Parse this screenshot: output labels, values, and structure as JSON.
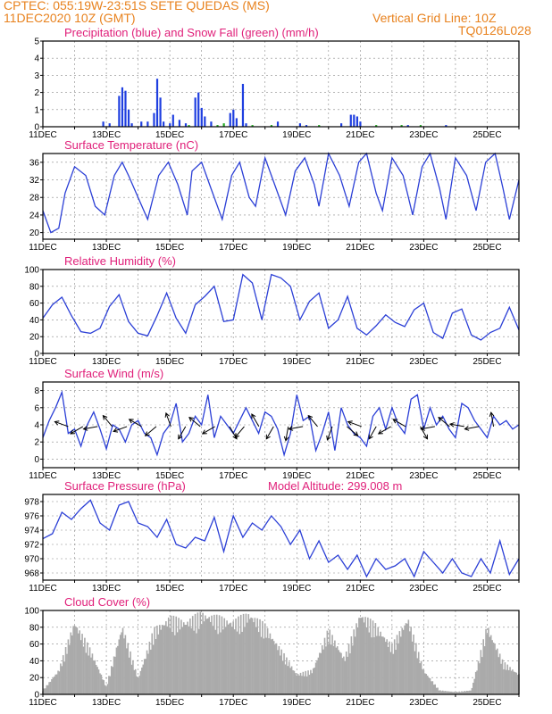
{
  "header": {
    "line1": "CPTEC:  055:19W-23:51S  SETE QUEDAS (MS)",
    "line2_left": "11DEC2020 10Z (GMT)",
    "line2_right": "Vertical Grid Line: 10Z",
    "line3_right": "TQ0126L028"
  },
  "colors": {
    "header": "#e8821e",
    "title": "#e0207a",
    "line": "#2b3fd6",
    "snow": "#22aa22",
    "cloud": "#aaaaaa",
    "arrow": "#000000"
  },
  "x_dates": [
    "11DEC",
    "13DEC",
    "15DEC",
    "17DEC",
    "19DEC",
    "21DEC",
    "23DEC",
    "25DEC"
  ],
  "chart_data": [
    {
      "id": "precip",
      "type": "bar",
      "title": "Precipitation (blue) and Snow Fall (green) (mm/h)",
      "ylim": [
        0,
        5
      ],
      "yticks": [
        0,
        1,
        2,
        3,
        4,
        5
      ],
      "xlim": [
        0,
        15
      ],
      "series": [
        {
          "name": "Precipitation",
          "color": "#1f3fe0",
          "x": [
            1.9,
            2.1,
            2.4,
            2.5,
            2.6,
            2.7,
            2.8,
            3.1,
            3.3,
            3.5,
            3.6,
            3.7,
            3.8,
            4.0,
            4.1,
            4.3,
            4.5,
            4.8,
            4.9,
            5.0,
            5.1,
            5.3,
            5.9,
            6.0,
            6.1,
            6.3,
            6.4,
            7.4,
            8.1,
            8.3,
            9.4,
            9.7,
            9.8,
            9.9,
            10.0,
            11.5,
            12.7
          ],
          "values": [
            0.3,
            0.2,
            1.8,
            2.3,
            2.1,
            1.0,
            0.2,
            0.3,
            0.3,
            0.8,
            2.8,
            1.7,
            0.3,
            0.2,
            0.7,
            0.4,
            0.2,
            1.7,
            2.0,
            1.1,
            0.6,
            0.3,
            0.8,
            1.0,
            0.5,
            2.5,
            0.2,
            0.3,
            0.2,
            0.1,
            0.2,
            0.7,
            0.7,
            0.6,
            0.3,
            0.1,
            0.1
          ]
        },
        {
          "name": "Snow Fall",
          "color": "#22aa22",
          "x": [
            4.6,
            5.5,
            5.7,
            6.6,
            7.2,
            8.7,
            10.5,
            11.3,
            11.9
          ],
          "values": [
            0.1,
            0.1,
            0.2,
            0.1,
            0.1,
            0.1,
            0.1,
            0.1,
            0.1
          ]
        }
      ]
    },
    {
      "id": "temp",
      "type": "line",
      "title": "Surface Temperature (nC)",
      "ylim": [
        18.5,
        38
      ],
      "yticks": [
        20,
        24,
        28,
        32,
        36
      ],
      "xlim": [
        0,
        15
      ],
      "series": [
        {
          "name": "Temperature",
          "x": [
            0,
            0.25,
            0.5,
            0.7,
            1.0,
            1.35,
            1.65,
            1.95,
            2.25,
            2.5,
            2.7,
            3.0,
            3.3,
            3.65,
            3.95,
            4.25,
            4.55,
            4.7,
            5.0,
            5.3,
            5.65,
            5.95,
            6.2,
            6.5,
            6.7,
            7.0,
            7.3,
            7.65,
            7.95,
            8.25,
            8.55,
            8.7,
            9.0,
            9.35,
            9.65,
            9.95,
            10.2,
            10.5,
            10.7,
            11.0,
            11.35,
            11.65,
            11.95,
            12.2,
            12.5,
            12.7,
            13.0,
            13.35,
            13.65,
            13.95,
            14.25,
            14.5,
            14.7,
            15.0
          ],
          "values": [
            25,
            20,
            21,
            29,
            35,
            33,
            26,
            24,
            33,
            36,
            33,
            28,
            23,
            33,
            36,
            31,
            24,
            34,
            36,
            30,
            23,
            33,
            36,
            28,
            26,
            37,
            31,
            24,
            34,
            37,
            31,
            26,
            38,
            33,
            26,
            36,
            38,
            29,
            25,
            37,
            33,
            24,
            35,
            38,
            30,
            23,
            37,
            33,
            25,
            36,
            38,
            30,
            23,
            32
          ]
        }
      ]
    },
    {
      "id": "rh",
      "type": "line",
      "title": "Relative Humidity (%)",
      "ylim": [
        0,
        100
      ],
      "yticks": [
        0,
        20,
        40,
        60,
        80,
        100
      ],
      "xlim": [
        0,
        15
      ],
      "series": [
        {
          "name": "Humidity",
          "x": [
            0,
            0.3,
            0.6,
            0.9,
            1.2,
            1.5,
            1.8,
            2.1,
            2.4,
            2.7,
            3.0,
            3.3,
            3.6,
            3.9,
            4.2,
            4.5,
            4.8,
            5.1,
            5.4,
            5.7,
            6.0,
            6.3,
            6.6,
            6.9,
            7.2,
            7.5,
            7.8,
            8.1,
            8.4,
            8.7,
            9.0,
            9.3,
            9.6,
            9.9,
            10.2,
            10.5,
            10.8,
            11.1,
            11.4,
            11.7,
            12.0,
            12.3,
            12.6,
            12.9,
            13.2,
            13.5,
            13.8,
            14.1,
            14.4,
            14.7,
            15.0
          ],
          "values": [
            42,
            58,
            67,
            45,
            26,
            24,
            30,
            56,
            70,
            38,
            24,
            21,
            45,
            72,
            42,
            24,
            58,
            68,
            80,
            38,
            40,
            94,
            84,
            40,
            94,
            90,
            80,
            40,
            62,
            72,
            30,
            40,
            68,
            30,
            22,
            33,
            46,
            37,
            32,
            52,
            60,
            25,
            18,
            48,
            53,
            22,
            16,
            25,
            30,
            55,
            28
          ]
        }
      ]
    },
    {
      "id": "wind",
      "type": "line",
      "title": "Surface Wind (m/s)",
      "ylim": [
        -1,
        9
      ],
      "yticks": [
        0,
        2,
        4,
        6,
        8
      ],
      "xlim": [
        0,
        15
      ],
      "series": [
        {
          "name": "Wind speed",
          "x": [
            0,
            0.2,
            0.4,
            0.6,
            0.8,
            1.0,
            1.2,
            1.4,
            1.6,
            1.8,
            2.0,
            2.2,
            2.4,
            2.6,
            2.8,
            3.0,
            3.2,
            3.4,
            3.6,
            3.8,
            4.0,
            4.2,
            4.4,
            4.6,
            4.8,
            5.0,
            5.2,
            5.4,
            5.6,
            5.8,
            6.0,
            6.2,
            6.4,
            6.6,
            6.8,
            7.0,
            7.2,
            7.4,
            7.6,
            7.8,
            8.0,
            8.2,
            8.4,
            8.6,
            8.8,
            9.0,
            9.2,
            9.4,
            9.6,
            9.8,
            10.0,
            10.2,
            10.4,
            10.6,
            10.8,
            11.0,
            11.2,
            11.4,
            11.6,
            11.8,
            12.0,
            12.2,
            12.4,
            12.6,
            12.8,
            13.0,
            13.2,
            13.4,
            13.6,
            13.8,
            14.0,
            14.2,
            14.4,
            14.6,
            14.8,
            15.0
          ],
          "values": [
            2.5,
            4.5,
            6.0,
            7.8,
            3.0,
            3.5,
            1.5,
            4.0,
            5.5,
            3.5,
            1.2,
            4.0,
            3.5,
            2.0,
            4.0,
            4.5,
            3.0,
            2.5,
            0.5,
            3.0,
            4.0,
            6.5,
            2.0,
            3.0,
            5.0,
            4.0,
            7.5,
            2.5,
            5.0,
            4.0,
            3.0,
            4.5,
            6.0,
            4.5,
            3.0,
            5.5,
            5.0,
            3.5,
            0.5,
            3.0,
            7.5,
            4.5,
            5.0,
            1.0,
            3.0,
            5.5,
            1.0,
            6.0,
            4.0,
            3.0,
            2.5,
            1.5,
            5.0,
            6.0,
            3.5,
            6.0,
            4.0,
            3.0,
            7.0,
            7.5,
            3.5,
            6.0,
            4.0,
            5.0,
            3.5,
            2.5,
            6.5,
            6.0,
            4.5,
            3.5,
            2.5,
            5.0,
            4.0,
            4.5,
            3.5,
            4.0
          ]
        }
      ],
      "arrows_deg": [
        200,
        150,
        170,
        230,
        160,
        210,
        140,
        250,
        120,
        220,
        150,
        60,
        130,
        240,
        120,
        100,
        170,
        230,
        110,
        40,
        200,
        120,
        150,
        210,
        60,
        170,
        220,
        190,
        170,
        260
      ]
    },
    {
      "id": "press",
      "type": "line",
      "title": "Surface Pressure (hPa)",
      "subtitle": "Model Altitude: 299.008  m",
      "ylim": [
        967,
        979
      ],
      "yticks": [
        968,
        970,
        972,
        974,
        976,
        978
      ],
      "xlim": [
        0,
        15
      ],
      "series": [
        {
          "name": "Pressure",
          "x": [
            0,
            0.3,
            0.6,
            0.9,
            1.2,
            1.5,
            1.8,
            2.1,
            2.4,
            2.7,
            3.0,
            3.3,
            3.6,
            3.9,
            4.2,
            4.5,
            4.8,
            5.1,
            5.4,
            5.7,
            6.0,
            6.3,
            6.6,
            6.9,
            7.2,
            7.5,
            7.8,
            8.1,
            8.4,
            8.7,
            9.0,
            9.3,
            9.6,
            9.9,
            10.2,
            10.5,
            10.8,
            11.1,
            11.4,
            11.7,
            12.0,
            12.3,
            12.6,
            12.9,
            13.2,
            13.5,
            13.8,
            14.1,
            14.4,
            14.7,
            15.0
          ],
          "values": [
            972.8,
            973.5,
            976.5,
            975.5,
            977.0,
            978.2,
            975.0,
            974.0,
            977.5,
            978.0,
            975.0,
            974.5,
            973.0,
            975.5,
            972.0,
            971.5,
            973.0,
            972.5,
            975.8,
            971.0,
            976.0,
            973.0,
            975.0,
            974.0,
            976.0,
            974.5,
            972.0,
            974.0,
            970.0,
            972.5,
            969.5,
            970.5,
            968.5,
            970.5,
            967.5,
            970.0,
            968.5,
            969.0,
            970.0,
            967.5,
            971.0,
            969.5,
            968.0,
            970.0,
            968.0,
            967.5,
            970.0,
            968.0,
            972.5,
            967.8,
            970.0
          ]
        }
      ]
    },
    {
      "id": "cloud",
      "type": "bar",
      "title": "Cloud Cover (%)",
      "ylim": [
        0,
        100
      ],
      "yticks": [
        0,
        20,
        40,
        60,
        80,
        100
      ],
      "xlim": [
        0,
        15
      ],
      "series": [
        {
          "name": "Cloud cover",
          "x": [
            0,
            0.5,
            1.0,
            1.5,
            2.0,
            2.5,
            3.0,
            3.5,
            4.0,
            4.5,
            5.0,
            5.5,
            6.0,
            6.5,
            7.0,
            7.5,
            8.0,
            8.5,
            9.0,
            9.5,
            10.0,
            10.5,
            11.0,
            11.5,
            12.0,
            12.5,
            13.0,
            13.5,
            14.0,
            14.5,
            15.0
          ],
          "values": [
            5,
            30,
            90,
            55,
            10,
            85,
            20,
            80,
            95,
            90,
            100,
            95,
            90,
            100,
            85,
            55,
            25,
            30,
            80,
            45,
            100,
            85,
            60,
            95,
            30,
            5,
            3,
            5,
            85,
            40,
            25
          ]
        }
      ]
    }
  ]
}
